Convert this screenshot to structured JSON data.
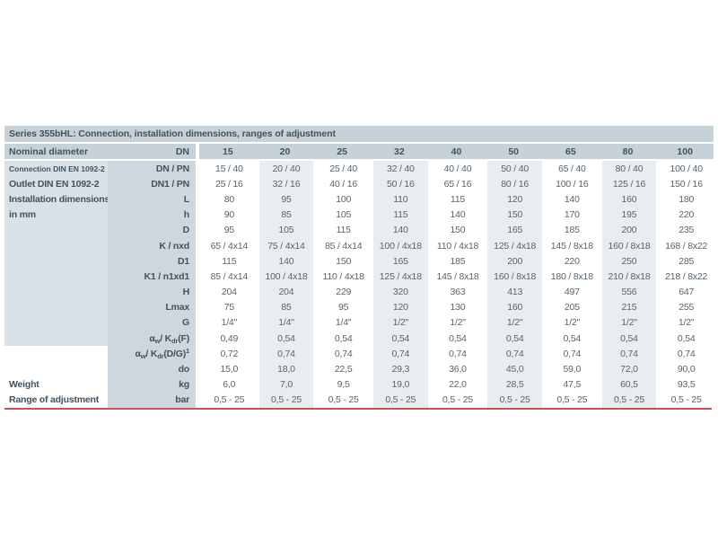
{
  "colors": {
    "header_band_bg": "#c6d1d8",
    "label_panel_bg": "#d9e1e6",
    "sublabel_col_bg": "#cdd7dd",
    "striped_col_bg": "#e9edef",
    "heading_text": "#43525d",
    "value_text": "#57646e",
    "bottom_rule": "#ca525b",
    "page_bg": "#ffffff"
  },
  "table": {
    "title": "Series 355bHL: Connection, installation dimensions, ranges of adjustment",
    "header": {
      "label": "Nominal diameter",
      "unit": "DN",
      "columns": [
        "15",
        "20",
        "25",
        "32",
        "40",
        "50",
        "65",
        "80",
        "100"
      ]
    },
    "rows": [
      {
        "key": "dn-pn",
        "label": "Connection DIN EN 1092-2",
        "sublabel": "DN / PN",
        "values": [
          "15 / 40",
          "20 / 40",
          "25 / 40",
          "32 / 40",
          "40 / 40",
          "50 / 40",
          "65 / 40",
          "80 / 40",
          "100 / 40"
        ]
      },
      {
        "key": "dn1-pn",
        "label": "Outlet DIN EN 1092-2",
        "sublabel": "DN1 / PN",
        "values": [
          "25 / 16",
          "32 / 16",
          "40 / 16",
          "50 / 16",
          "65 / 16",
          "80 / 16",
          "100 / 16",
          "125 / 16",
          "150 / 16"
        ]
      },
      {
        "key": "l",
        "label": "Installation dimensions",
        "sublabel": "L",
        "values": [
          "80",
          "95",
          "100",
          "110",
          "115",
          "120",
          "140",
          "160",
          "180"
        ]
      },
      {
        "key": "h",
        "label": "in mm",
        "sublabel": "h",
        "values": [
          "90",
          "85",
          "105",
          "115",
          "140",
          "150",
          "170",
          "195",
          "220"
        ]
      },
      {
        "key": "d",
        "label": "",
        "sublabel": "D",
        "values": [
          "95",
          "105",
          "115",
          "140",
          "150",
          "165",
          "185",
          "200",
          "235"
        ]
      },
      {
        "key": "k-nxd",
        "label": "",
        "sublabel": "K / nxd",
        "values": [
          "65 / 4x14",
          "75 / 4x14",
          "85 / 4x14",
          "100 / 4x18",
          "110 / 4x18",
          "125 / 4x18",
          "145 / 8x18",
          "160 / 8x18",
          "168 / 8x22"
        ]
      },
      {
        "key": "d1",
        "label": "",
        "sublabel": "D1",
        "values": [
          "115",
          "140",
          "150",
          "165",
          "185",
          "200",
          "220",
          "250",
          "285"
        ]
      },
      {
        "key": "k1-n1xd1",
        "label": "",
        "sublabel": "K1 / n1xd1",
        "values": [
          "85 / 4x14",
          "100 / 4x18",
          "110 / 4x18",
          "125 / 4x18",
          "145 / 8x18",
          "160 / 8x18",
          "180 / 8x18",
          "210 / 8x18",
          "218 / 8x22"
        ]
      },
      {
        "key": "h-total",
        "label": "",
        "sublabel": "H",
        "values": [
          "204",
          "204",
          "229",
          "320",
          "363",
          "413",
          "497",
          "556",
          "647"
        ]
      },
      {
        "key": "lmax",
        "label": "",
        "sublabel": "Lmax",
        "values": [
          "75",
          "85",
          "95",
          "120",
          "130",
          "160",
          "205",
          "215",
          "255"
        ]
      },
      {
        "key": "g",
        "label": "",
        "sublabel": "G",
        "values": [
          "1/4\"",
          "1/4\"",
          "1/4\"",
          "1/2\"",
          "1/2\"",
          "1/2\"",
          "1/2\"",
          "1/2\"",
          "1/2\""
        ]
      },
      {
        "key": "alpha-f",
        "label": "",
        "sublabel_parts": [
          {
            "t": "α"
          },
          {
            "sub": "w"
          },
          {
            "t": " / K"
          },
          {
            "sub": "dr"
          },
          {
            "t": " (F)"
          }
        ],
        "values": [
          "0,49",
          "0,54",
          "0,54",
          "0,54",
          "0,54",
          "0,54",
          "0,54",
          "0,54",
          "0,54"
        ]
      },
      {
        "key": "alpha-dg",
        "label": "",
        "sublabel_parts": [
          {
            "t": "α"
          },
          {
            "sub": "w"
          },
          {
            "t": " / K"
          },
          {
            "sub": "dr"
          },
          {
            "t": " (D/G)"
          },
          {
            "sup": "1"
          }
        ],
        "values": [
          "0,72",
          "0,74",
          "0,74",
          "0,74",
          "0,74",
          "0,74",
          "0,74",
          "0,74",
          "0,74"
        ]
      },
      {
        "key": "do",
        "label": "",
        "sublabel": "do",
        "values": [
          "15,0",
          "18,0",
          "22,5",
          "29,3",
          "36,0",
          "45,0",
          "59,0",
          "72,0",
          "90,0"
        ]
      },
      {
        "key": "weight",
        "label": "Weight",
        "sublabel": "kg",
        "values": [
          "6,0",
          "7,0",
          "9,5",
          "19,0",
          "22,0",
          "28,5",
          "47,5",
          "60,5",
          "93,5"
        ]
      },
      {
        "key": "range",
        "label": "Range of adjustment",
        "sublabel": "bar",
        "values": [
          "0,5 - 25",
          "0,5 - 25",
          "0,5 - 25",
          "0,5 - 25",
          "0,5 - 25",
          "0,5 - 25",
          "0,5 - 25",
          "0,5 - 25",
          "0,5 - 25"
        ]
      }
    ],
    "striped_column_indices": [
      1,
      3,
      5,
      7
    ],
    "plain_label_from_row": 12
  }
}
